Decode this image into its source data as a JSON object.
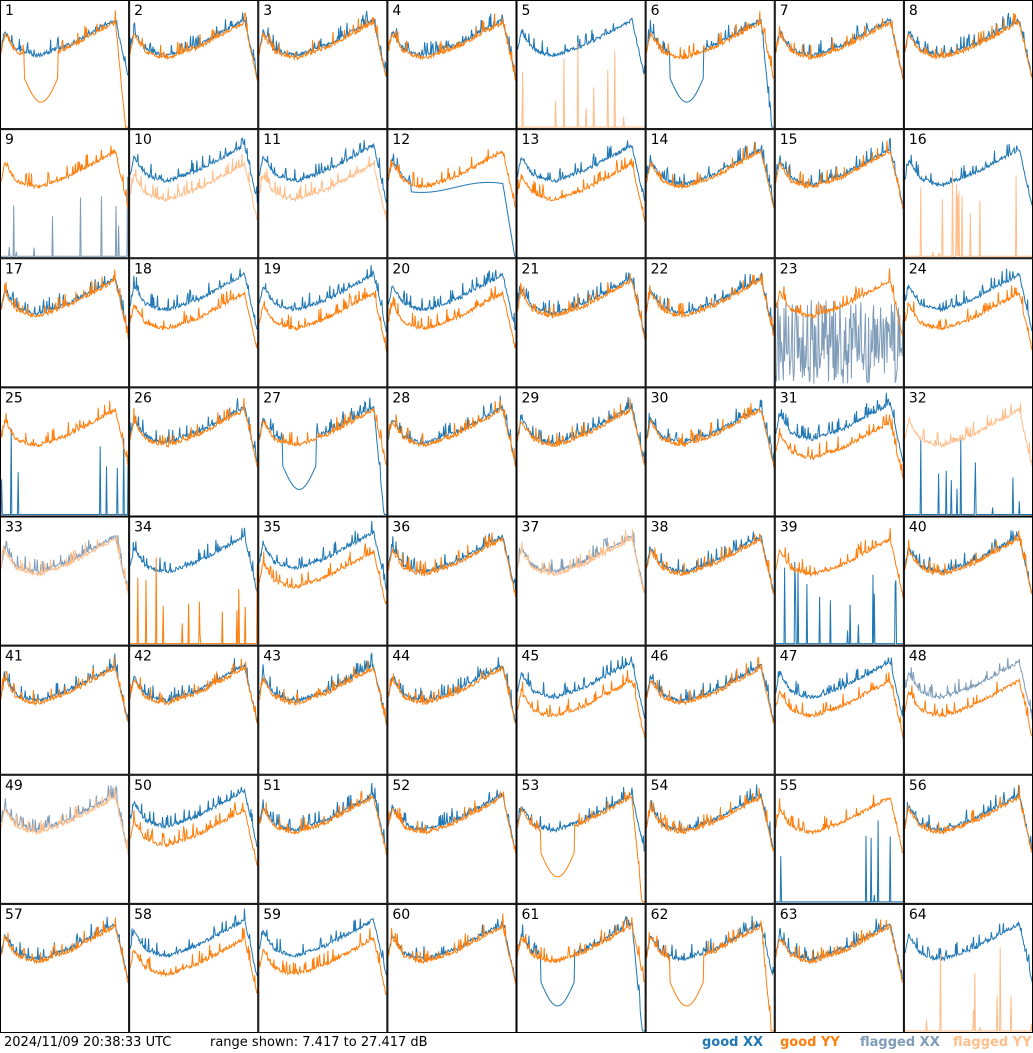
{
  "timestamp": "2024/11/09 20:38:33 UTC",
  "range_text": "range shown: 7.417 to 27.417 dB",
  "legend": {
    "good_xx": "good XX",
    "good_yy": "good YY",
    "flagged_xx": "flagged XX",
    "flagged_yy": "flagged YY"
  },
  "colors": {
    "good_xx": "#1f77b4",
    "good_yy": "#ff7f0e",
    "flagged_xx": "#7f9cb8",
    "flagged_yy": "#ffbe8a"
  },
  "chart_data": {
    "type": "line",
    "ylim": [
      7.417,
      27.417
    ],
    "unit": "dB",
    "grid_rows": 8,
    "grid_cols": 8,
    "panels": [
      {
        "label": "1",
        "xx": "good",
        "yy": "good",
        "shape": "yy_dropout"
      },
      {
        "label": "2",
        "xx": "good",
        "yy": "good",
        "shape": "normal"
      },
      {
        "label": "3",
        "xx": "good",
        "yy": "good",
        "shape": "normal"
      },
      {
        "label": "4",
        "xx": "good",
        "yy": "good",
        "shape": "normal"
      },
      {
        "label": "5",
        "xx": "good",
        "yy": "flagged",
        "shape": "yy_spikes"
      },
      {
        "label": "6",
        "xx": "good",
        "yy": "good",
        "shape": "xx_dropout"
      },
      {
        "label": "7",
        "xx": "good",
        "yy": "good",
        "shape": "normal"
      },
      {
        "label": "8",
        "xx": "good",
        "yy": "good",
        "shape": "normal"
      },
      {
        "label": "9",
        "xx": "flagged",
        "yy": "good",
        "shape": "xx_spikes"
      },
      {
        "label": "10",
        "xx": "good",
        "yy": "flagged",
        "shape": "split"
      },
      {
        "label": "11",
        "xx": "good",
        "yy": "flagged",
        "shape": "split"
      },
      {
        "label": "12",
        "xx": "good",
        "yy": "good",
        "shape": "low_end"
      },
      {
        "label": "13",
        "xx": "good",
        "yy": "good",
        "shape": "split"
      },
      {
        "label": "14",
        "xx": "good",
        "yy": "good",
        "shape": "normal"
      },
      {
        "label": "15",
        "xx": "good",
        "yy": "good",
        "shape": "normal"
      },
      {
        "label": "16",
        "xx": "good",
        "yy": "flagged",
        "shape": "yy_spikes"
      },
      {
        "label": "17",
        "xx": "good",
        "yy": "good",
        "shape": "normal"
      },
      {
        "label": "18",
        "xx": "good",
        "yy": "good",
        "shape": "split"
      },
      {
        "label": "19",
        "xx": "good",
        "yy": "good",
        "shape": "split"
      },
      {
        "label": "20",
        "xx": "good",
        "yy": "good",
        "shape": "split"
      },
      {
        "label": "21",
        "xx": "good",
        "yy": "good",
        "shape": "normal"
      },
      {
        "label": "22",
        "xx": "good",
        "yy": "good",
        "shape": "normal"
      },
      {
        "label": "23",
        "xx": "flagged",
        "yy": "good",
        "shape": "xx_noise"
      },
      {
        "label": "24",
        "xx": "good",
        "yy": "good",
        "shape": "split"
      },
      {
        "label": "25",
        "xx": "good",
        "yy": "good",
        "shape": "xx_spikes"
      },
      {
        "label": "26",
        "xx": "good",
        "yy": "good",
        "shape": "normal"
      },
      {
        "label": "27",
        "xx": "good",
        "yy": "good",
        "shape": "xx_dropout"
      },
      {
        "label": "28",
        "xx": "good",
        "yy": "good",
        "shape": "normal"
      },
      {
        "label": "29",
        "xx": "good",
        "yy": "good",
        "shape": "normal"
      },
      {
        "label": "30",
        "xx": "good",
        "yy": "good",
        "shape": "normal"
      },
      {
        "label": "31",
        "xx": "good",
        "yy": "good",
        "shape": "split"
      },
      {
        "label": "32",
        "xx": "good",
        "yy": "flagged",
        "shape": "xx_spikes"
      },
      {
        "label": "33",
        "xx": "flagged",
        "yy": "flagged",
        "shape": "normal"
      },
      {
        "label": "34",
        "xx": "good",
        "yy": "good",
        "shape": "yy_spikes"
      },
      {
        "label": "35",
        "xx": "good",
        "yy": "good",
        "shape": "split"
      },
      {
        "label": "36",
        "xx": "good",
        "yy": "good",
        "shape": "normal"
      },
      {
        "label": "37",
        "xx": "flagged",
        "yy": "flagged",
        "shape": "normal"
      },
      {
        "label": "38",
        "xx": "good",
        "yy": "good",
        "shape": "normal"
      },
      {
        "label": "39",
        "xx": "good",
        "yy": "good",
        "shape": "xx_spikes"
      },
      {
        "label": "40",
        "xx": "good",
        "yy": "good",
        "shape": "normal"
      },
      {
        "label": "41",
        "xx": "good",
        "yy": "good",
        "shape": "normal"
      },
      {
        "label": "42",
        "xx": "good",
        "yy": "good",
        "shape": "normal"
      },
      {
        "label": "43",
        "xx": "good",
        "yy": "good",
        "shape": "normal"
      },
      {
        "label": "44",
        "xx": "good",
        "yy": "good",
        "shape": "normal"
      },
      {
        "label": "45",
        "xx": "good",
        "yy": "good",
        "shape": "split"
      },
      {
        "label": "46",
        "xx": "good",
        "yy": "good",
        "shape": "normal"
      },
      {
        "label": "47",
        "xx": "good",
        "yy": "good",
        "shape": "split"
      },
      {
        "label": "48",
        "xx": "flagged",
        "yy": "good",
        "shape": "split"
      },
      {
        "label": "49",
        "xx": "flagged",
        "yy": "flagged",
        "shape": "normal"
      },
      {
        "label": "50",
        "xx": "good",
        "yy": "good",
        "shape": "split"
      },
      {
        "label": "51",
        "xx": "good",
        "yy": "good",
        "shape": "normal"
      },
      {
        "label": "52",
        "xx": "good",
        "yy": "good",
        "shape": "normal"
      },
      {
        "label": "53",
        "xx": "good",
        "yy": "good",
        "shape": "yy_dropout"
      },
      {
        "label": "54",
        "xx": "good",
        "yy": "good",
        "shape": "normal"
      },
      {
        "label": "55",
        "xx": "good",
        "yy": "good",
        "shape": "xx_spikes"
      },
      {
        "label": "56",
        "xx": "good",
        "yy": "good",
        "shape": "normal"
      },
      {
        "label": "57",
        "xx": "good",
        "yy": "good",
        "shape": "normal"
      },
      {
        "label": "58",
        "xx": "good",
        "yy": "good",
        "shape": "split"
      },
      {
        "label": "59",
        "xx": "good",
        "yy": "good",
        "shape": "split"
      },
      {
        "label": "60",
        "xx": "good",
        "yy": "good",
        "shape": "normal"
      },
      {
        "label": "61",
        "xx": "good",
        "yy": "good",
        "shape": "xx_dropout"
      },
      {
        "label": "62",
        "xx": "good",
        "yy": "good",
        "shape": "yy_dropout"
      },
      {
        "label": "63",
        "xx": "good",
        "yy": "good",
        "shape": "normal"
      },
      {
        "label": "64",
        "xx": "good",
        "yy": "flagged",
        "shape": "yy_spikes"
      }
    ]
  }
}
